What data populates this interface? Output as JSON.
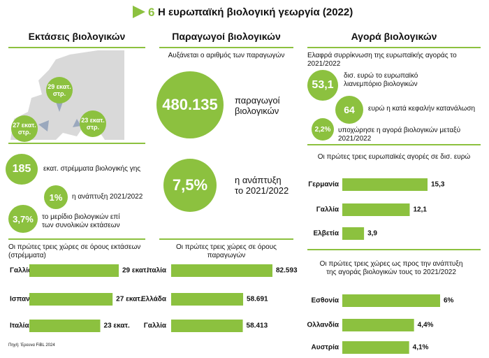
{
  "header": {
    "number": "6",
    "title": "Η ευρωπαϊκή βιολογική γεωργία (2022)"
  },
  "sections": [
    {
      "title": "Εκτάσεις βιολογικών",
      "map_labels": [
        "29 εκατ. στρ.",
        "27 εκατ. στρ.",
        "23 εκατ. στρ."
      ],
      "stats": [
        {
          "value": "185",
          "text": "εκατ. στρέμματα βιολογικής γης"
        },
        {
          "value": "1%",
          "text": "η ανάπτυξη 2021/2022"
        },
        {
          "value": "3,7%",
          "text": "το μερίδιο βιολογικών επί των συνολικών εκτάσεων"
        }
      ],
      "charts": [
        {
          "type": "bar",
          "title": "Οι πρώτες τρεις χώρες σε όρους εκτάσεων (στρέμματα)",
          "categories": [
            "Γαλλία",
            "Ισπανία",
            "Ιταλία"
          ],
          "values": [
            29,
            27,
            23
          ],
          "value_labels": [
            "29 εκατ.",
            "27 εκατ.",
            "23 εκατ."
          ],
          "color": "#8cc13f"
        }
      ]
    },
    {
      "title": "Παραγωγοί βιολογικών",
      "subtitle": "Αυξάνεται ο αριθμός των παραγωγών",
      "stats": [
        {
          "value": "480.135",
          "text": "παραγωγοί βιολογικών"
        },
        {
          "value": "7,5%",
          "text": "η ανάπτυξη το 2021/2022"
        }
      ],
      "charts": [
        {
          "type": "bar",
          "title": "Οι πρώτες τρεις χώρες σε όρους παραγωγών",
          "categories": [
            "Ιταλία",
            "Ελλάδα",
            "Γαλλία"
          ],
          "values": [
            82593,
            58691,
            58413
          ],
          "value_labels": [
            "82.593",
            "58.691",
            "58.413"
          ],
          "color": "#8cc13f"
        }
      ]
    },
    {
      "title": "Αγορά βιολογικών",
      "subtitle": "Ελαφρά συρρίκνωση της ευρωπαϊκής αγοράς το 2021/2022",
      "stats": [
        {
          "value": "53,1",
          "text": "δισ. ευρώ το ευρωπαϊκό λιανεμπόριο βιολογικών"
        },
        {
          "value": "64",
          "text": "ευρώ η κατά κεφαλήν κατανάλωση"
        },
        {
          "value": "2,2%",
          "text": "υποχώρησε η αγορά βιολογικών μεταξύ 2021/2022"
        }
      ],
      "charts": [
        {
          "type": "bar",
          "title": "Οι πρώτες τρεις ευρωπαϊκές αγορές σε δισ. ευρώ",
          "categories": [
            "Γερμανία",
            "Γαλλία",
            "Ελβετία"
          ],
          "values": [
            15.3,
            12.1,
            3.9
          ],
          "value_labels": [
            "15,3",
            "12,1",
            "3,9"
          ],
          "color": "#8cc13f"
        },
        {
          "type": "bar",
          "title": "Οι πρώτες τρεις χώρες ως προς την ανάπτυξη της αγοράς βιολογικών τους το 2021/2022",
          "categories": [
            "Εσθονία",
            "Ολλανδία",
            "Αυστρία"
          ],
          "values": [
            6,
            4.4,
            4.1
          ],
          "value_labels": [
            "6%",
            "4,4%",
            "4,1%"
          ],
          "color": "#8cc13f"
        }
      ]
    }
  ],
  "source": "Πηγή: Έρευνα FiBL 2024"
}
